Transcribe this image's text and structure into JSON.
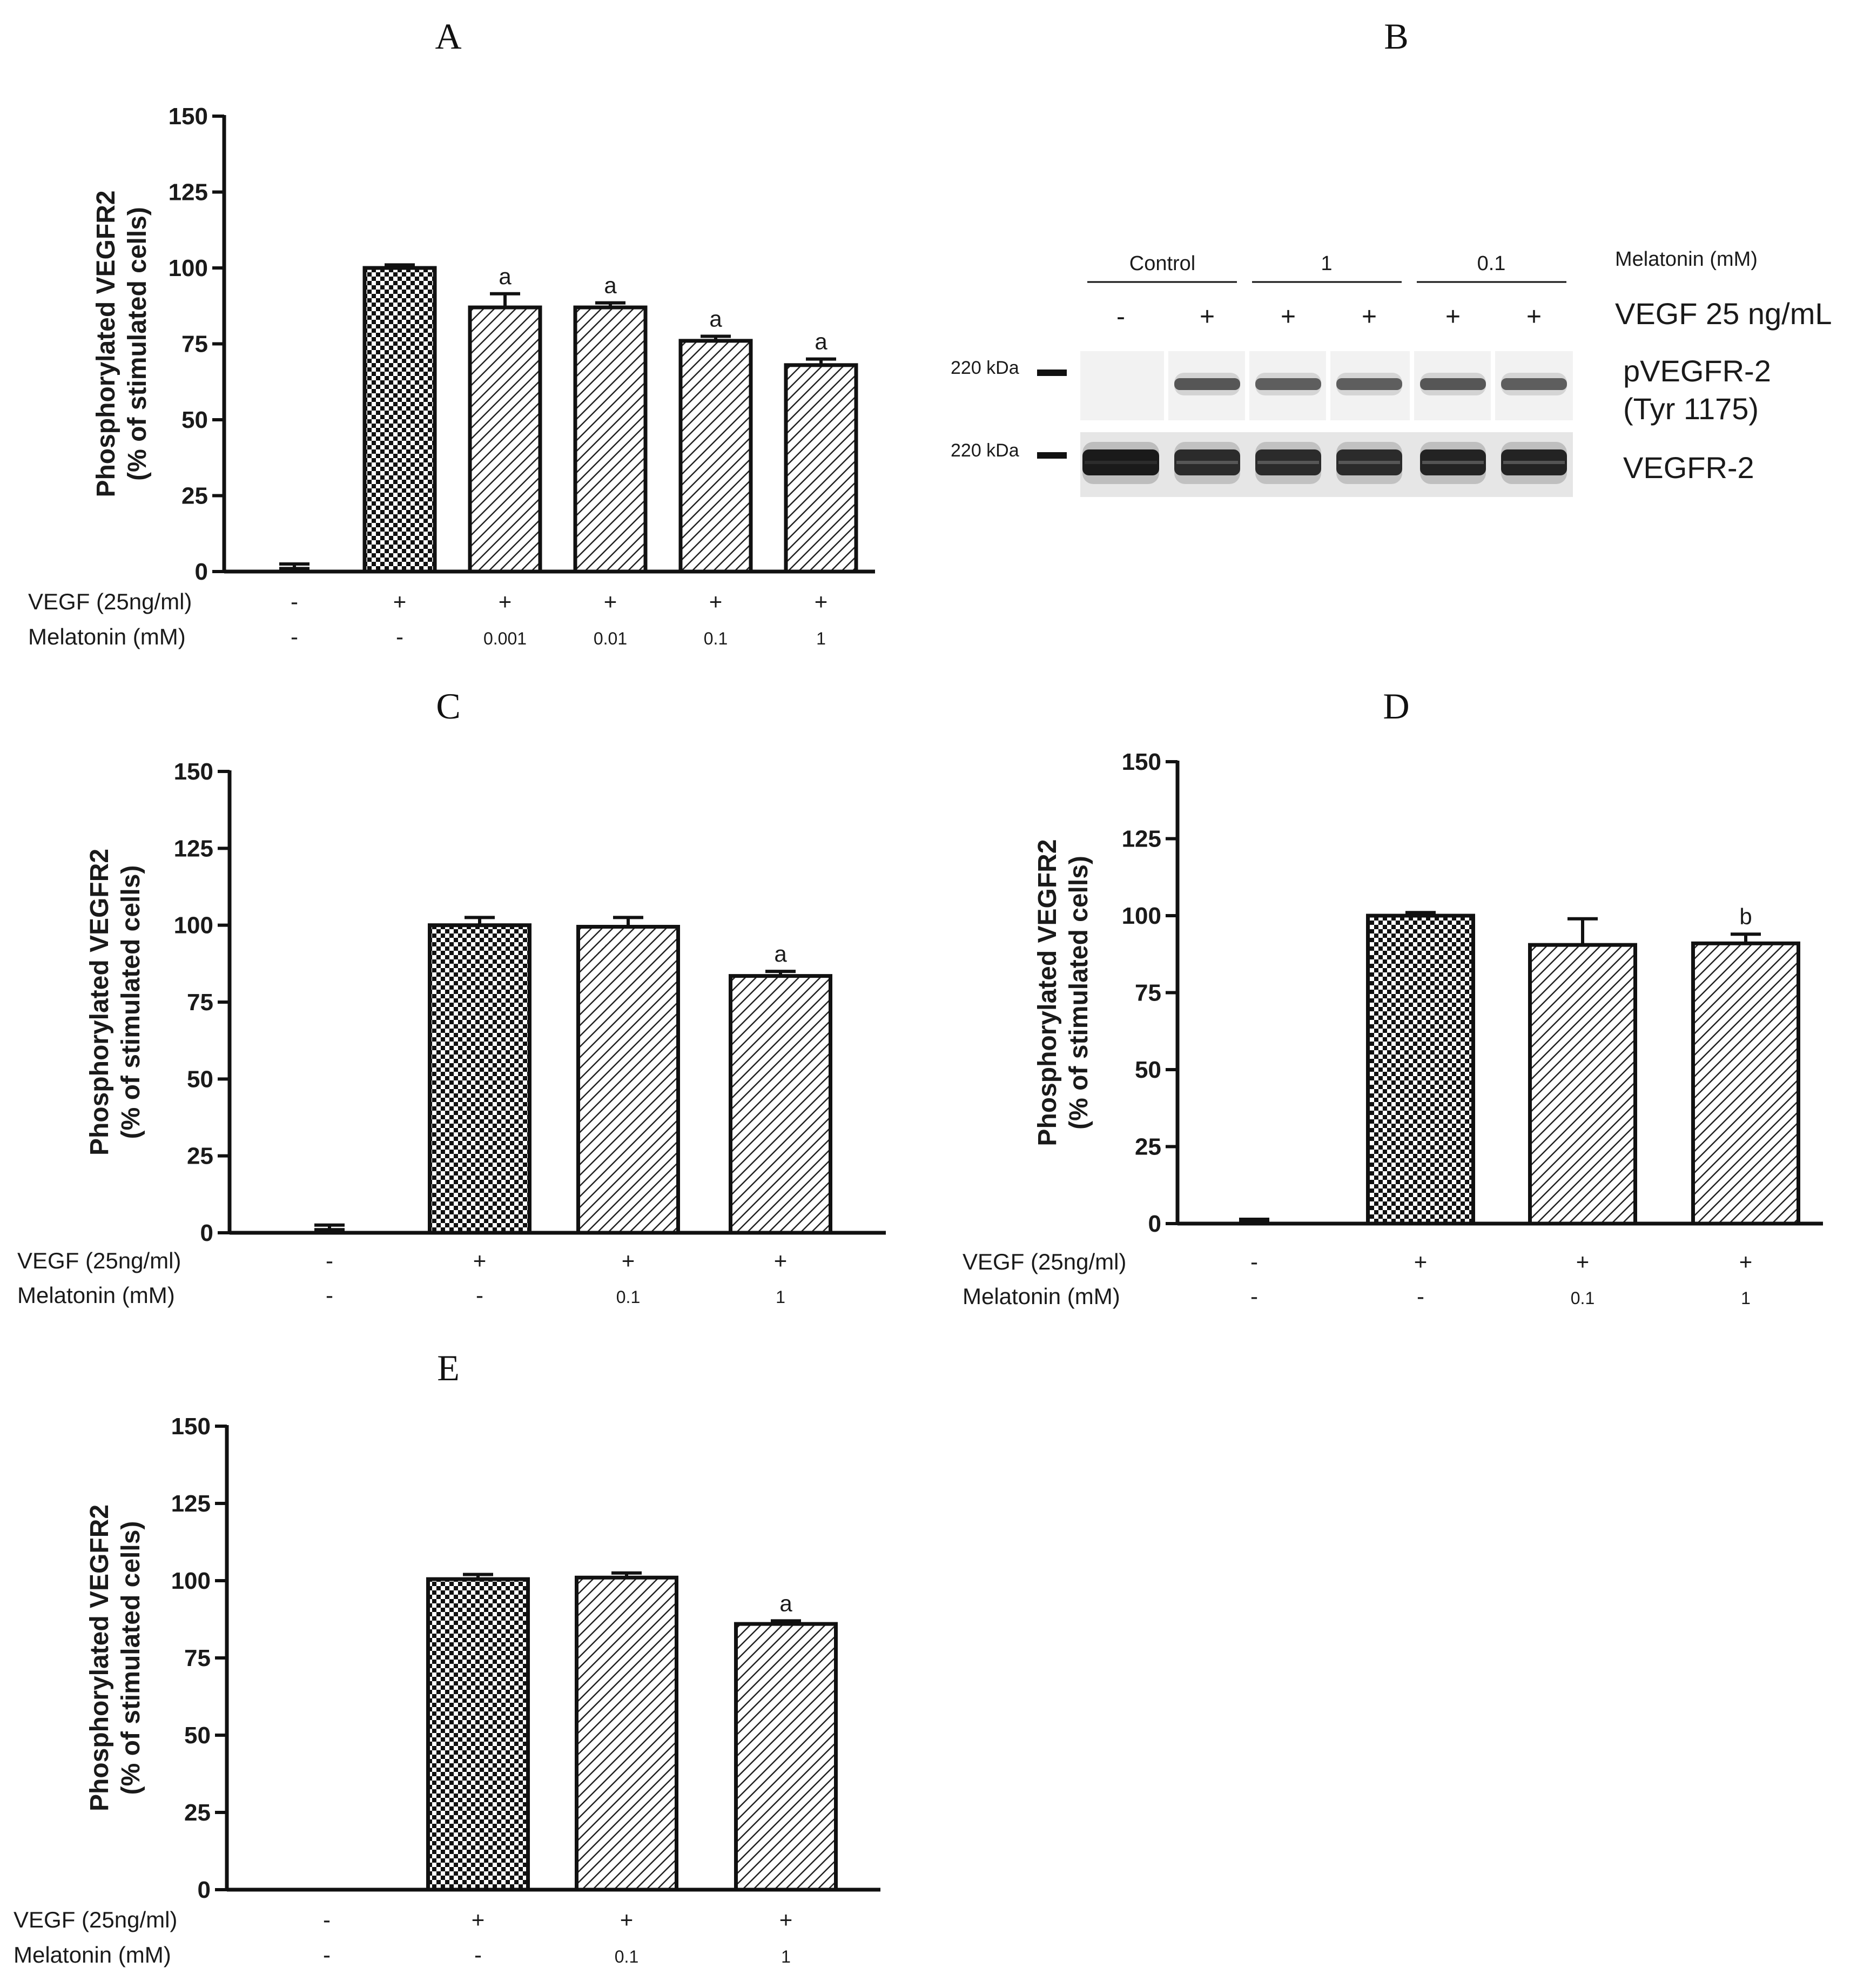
{
  "chart_data": [
    {
      "panel": "A",
      "type": "bar",
      "title": "",
      "ylabel": [
        "Phosphorylated  VEGFR2",
        "(% of stimulated cells)"
      ],
      "ylim": [
        0,
        150
      ],
      "yticks": [
        "0",
        "25",
        "50",
        "75",
        "100",
        "125",
        "150"
      ],
      "values": [
        1,
        100,
        87,
        87,
        76,
        68
      ],
      "errors": [
        1.5,
        1,
        4.5,
        1.5,
        1.5,
        2
      ],
      "patterns": [
        "none",
        "checker",
        "hatch",
        "hatch",
        "hatch",
        "hatch"
      ],
      "significance": [
        "",
        "",
        "a",
        "a",
        "a",
        "a"
      ],
      "rows": [
        {
          "label": "VEGF (25ng/ml)",
          "values": [
            "-",
            "+",
            "+",
            "+",
            "+",
            "+"
          ]
        },
        {
          "label": "Melatonin (mM)",
          "values": [
            "-",
            "-",
            "0.001",
            "0.01",
            "0.1",
            "1"
          ]
        }
      ]
    },
    {
      "panel": "C",
      "type": "bar",
      "title": "",
      "ylabel": [
        "Phosphorylated  VEGFR2",
        "(% of stimulated cells)"
      ],
      "ylim": [
        0,
        150
      ],
      "yticks": [
        "0",
        "25",
        "50",
        "75",
        "100",
        "125",
        "150"
      ],
      "values": [
        1,
        100,
        99.5,
        83.5
      ],
      "errors": [
        1.5,
        2.5,
        3,
        1.5
      ],
      "patterns": [
        "none",
        "checker",
        "hatch",
        "hatch"
      ],
      "significance": [
        "",
        "",
        "",
        "a"
      ],
      "rows": [
        {
          "label": "VEGF (25ng/ml)",
          "values": [
            "-",
            "+",
            "+",
            "+"
          ]
        },
        {
          "label": "Melatonin (mM)",
          "values": [
            "-",
            "-",
            "0.1",
            "1"
          ]
        }
      ]
    },
    {
      "panel": "D",
      "type": "bar",
      "title": "",
      "ylabel": [
        "Phosphorylated  VEGFR2",
        "(% of stimulated cells)"
      ],
      "ylim": [
        0,
        150
      ],
      "yticks": [
        "0",
        "25",
        "50",
        "75",
        "100",
        "125",
        "150"
      ],
      "values": [
        0.8,
        100,
        90.5,
        91
      ],
      "errors": [
        0.6,
        1,
        8.5,
        3
      ],
      "patterns": [
        "none",
        "checker",
        "hatch",
        "hatch"
      ],
      "significance": [
        "",
        "",
        "",
        "b"
      ],
      "rows": [
        {
          "label": "VEGF (25ng/ml)",
          "values": [
            "-",
            "+",
            "+",
            "+"
          ]
        },
        {
          "label": "Melatonin (mM)",
          "values": [
            "-",
            "-",
            "0.1",
            "1"
          ]
        }
      ]
    },
    {
      "panel": "E",
      "type": "bar",
      "title": "",
      "ylabel": [
        "Phosphorylated  VEGFR2",
        "(% of stimulated cells)"
      ],
      "ylim": [
        0,
        150
      ],
      "yticks": [
        "0",
        "25",
        "50",
        "75",
        "100",
        "125",
        "150"
      ],
      "values": [
        0,
        100.5,
        101,
        86
      ],
      "errors": [
        0,
        1.5,
        1.5,
        1
      ],
      "patterns": [
        "none",
        "checker",
        "hatch",
        "hatch"
      ],
      "significance": [
        "",
        "",
        "",
        "a"
      ],
      "rows": [
        {
          "label": "VEGF (25ng/ml)",
          "values": [
            "-",
            "+",
            "+",
            "+"
          ]
        },
        {
          "label": "Melatonin (mM)",
          "values": [
            "-",
            "-",
            "0.1",
            "1"
          ]
        }
      ]
    }
  ],
  "blot": {
    "panel": "B",
    "group_labels": [
      "Control",
      "1",
      "0.1"
    ],
    "melatonin_label": "Melatonin (mM)",
    "vegf_label": "VEGF 25 ng/mL",
    "vegf_signs": [
      "-",
      "+",
      "+",
      "+",
      "+",
      "+"
    ],
    "marker_label_top": "220 kDa",
    "marker_label_bottom": "220 kDa",
    "band_label_top_line1": "pVEGFR-2",
    "band_label_top_line2": "(Tyr 1175)",
    "band_label_bottom": "VEGFR-2",
    "p_band_intensity": [
      0,
      0.8,
      0.75,
      0.75,
      0.8,
      0.75
    ],
    "total_band_intensity": [
      1,
      0.9,
      0.9,
      0.9,
      0.95,
      0.95
    ]
  },
  "colors": {
    "bar_stroke": "#111111",
    "blot_band": "#1b1b1b",
    "blot_background": "#f0f0f0"
  }
}
